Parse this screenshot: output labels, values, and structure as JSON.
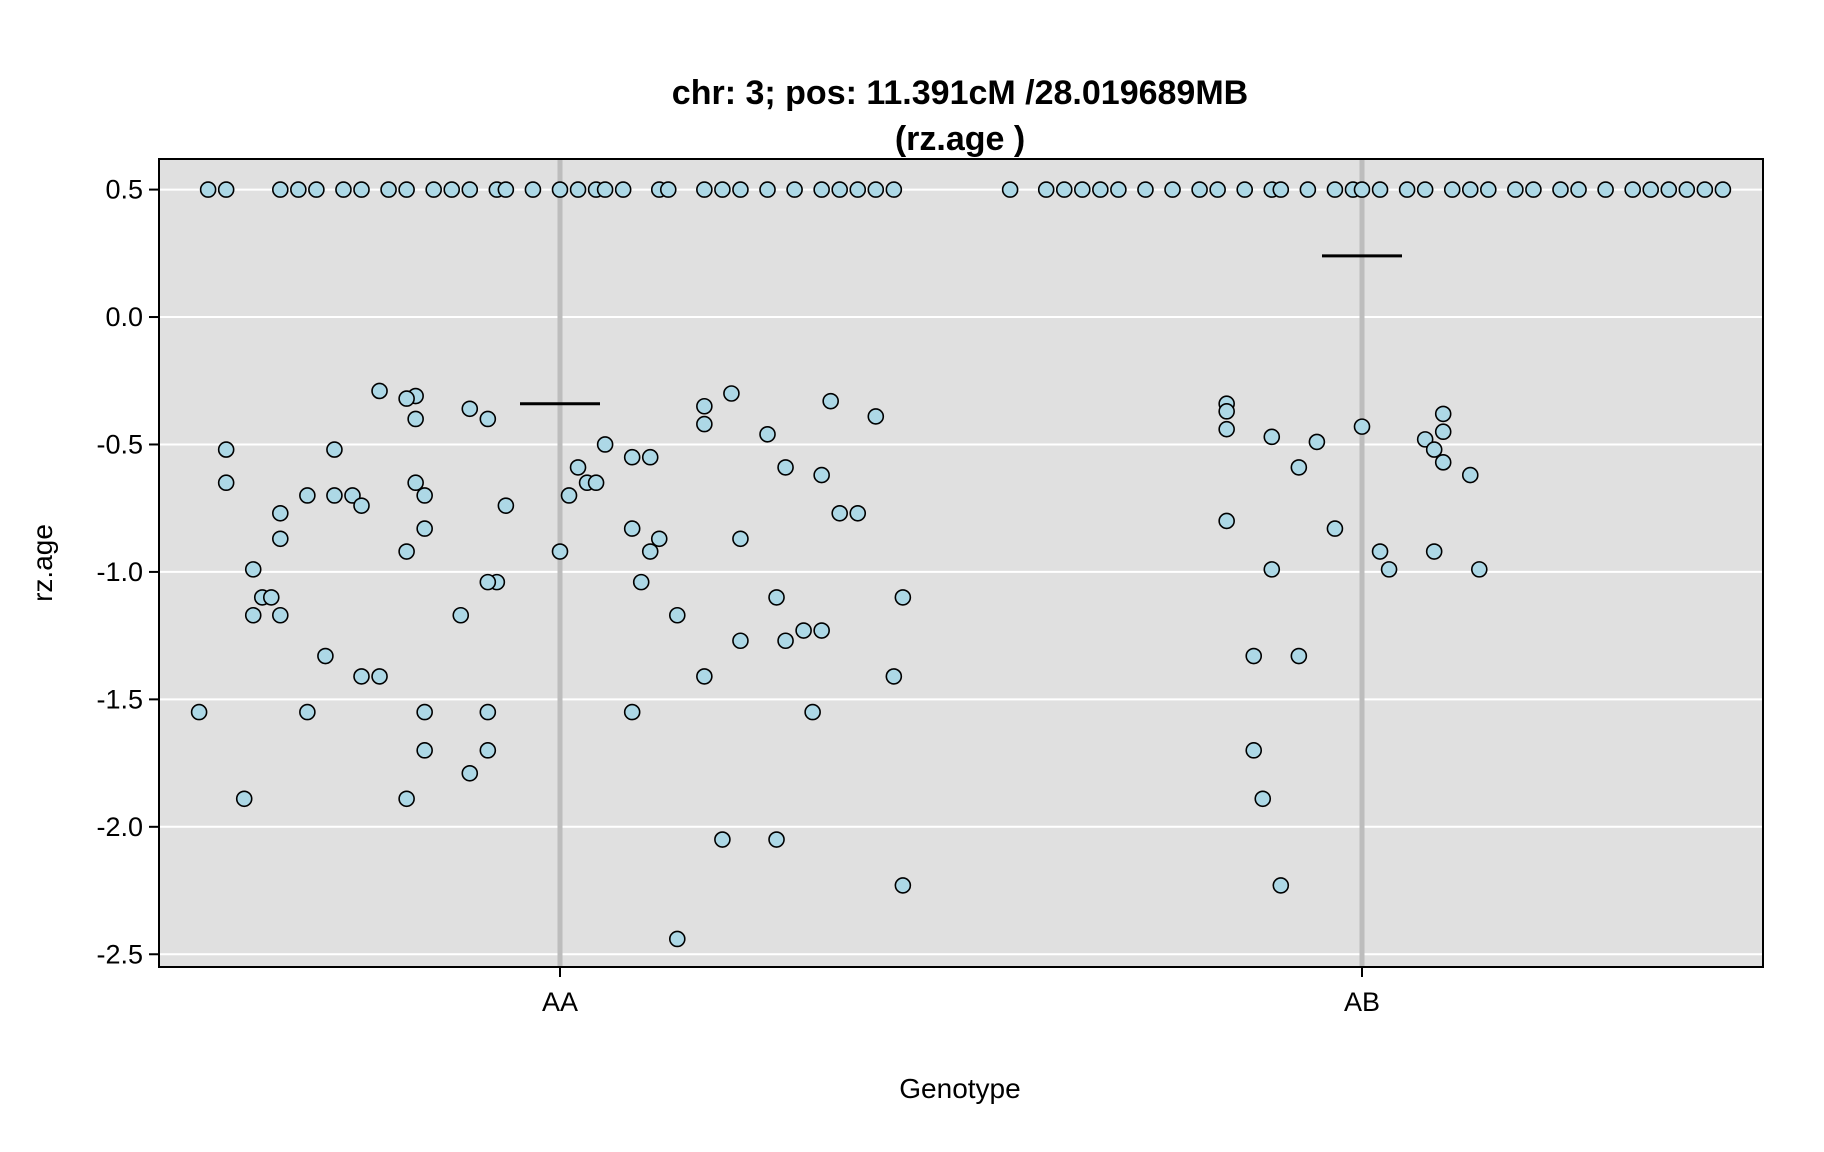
{
  "chart_data": {
    "type": "scatter",
    "title": "chr: 3; pos: 11.391cM /28.019689MB",
    "subtitle": "(rz.age )",
    "xlabel": "Genotype",
    "ylabel": "rz.age",
    "categories": [
      "AA",
      "AB"
    ],
    "ylim": [
      -2.55,
      0.62
    ],
    "yticks": [
      0.5,
      0.0,
      -0.5,
      -1.0,
      -1.5,
      -2.0,
      -2.5
    ],
    "ytick_labels": [
      "0.5",
      "0.0",
      "-0.5",
      "-1.0",
      "-1.5",
      "-2.0",
      "-2.5"
    ],
    "grid": true,
    "colors": {
      "panel": "#e0e0e0",
      "grid": "#ffffff",
      "category_line": "#bdbdbd",
      "point_fill": "#add8e6",
      "point_stroke": "#000000",
      "mean_line": "#000000"
    },
    "series": [
      {
        "category": "AA",
        "mean": -0.34,
        "points": [
          [
            -0.39,
            0.5
          ],
          [
            -0.37,
            0.5
          ],
          [
            -0.31,
            0.5
          ],
          [
            -0.29,
            0.5
          ],
          [
            -0.27,
            0.5
          ],
          [
            -0.24,
            0.5
          ],
          [
            -0.22,
            0.5
          ],
          [
            -0.19,
            0.5
          ],
          [
            -0.17,
            0.5
          ],
          [
            -0.14,
            0.5
          ],
          [
            -0.12,
            0.5
          ],
          [
            -0.1,
            0.5
          ],
          [
            -0.07,
            0.5
          ],
          [
            -0.06,
            0.5
          ],
          [
            -0.03,
            0.5
          ],
          [
            0.0,
            0.5
          ],
          [
            0.02,
            0.5
          ],
          [
            0.04,
            0.5
          ],
          [
            0.05,
            0.5
          ],
          [
            0.07,
            0.5
          ],
          [
            0.11,
            0.5
          ],
          [
            0.12,
            0.5
          ],
          [
            0.16,
            0.5
          ],
          [
            0.18,
            0.5
          ],
          [
            0.2,
            0.5
          ],
          [
            0.23,
            0.5
          ],
          [
            0.26,
            0.5
          ],
          [
            0.29,
            0.5
          ],
          [
            0.31,
            0.5
          ],
          [
            0.33,
            0.5
          ],
          [
            0.35,
            0.5
          ],
          [
            0.37,
            0.5
          ],
          [
            -0.2,
            -0.29
          ],
          [
            -0.16,
            -0.31
          ],
          [
            -0.17,
            -0.32
          ],
          [
            -0.1,
            -0.36
          ],
          [
            -0.08,
            -0.4
          ],
          [
            -0.16,
            -0.4
          ],
          [
            0.19,
            -0.3
          ],
          [
            0.3,
            -0.33
          ],
          [
            0.35,
            -0.39
          ],
          [
            0.16,
            -0.35
          ],
          [
            0.16,
            -0.42
          ],
          [
            0.23,
            -0.46
          ],
          [
            0.05,
            -0.5
          ],
          [
            0.08,
            -0.55
          ],
          [
            0.1,
            -0.55
          ],
          [
            0.02,
            -0.59
          ],
          [
            0.03,
            -0.65
          ],
          [
            0.04,
            -0.65
          ],
          [
            0.01,
            -0.7
          ],
          [
            -0.37,
            -0.52
          ],
          [
            -0.25,
            -0.52
          ],
          [
            -0.37,
            -0.65
          ],
          [
            -0.28,
            -0.7
          ],
          [
            -0.25,
            -0.7
          ],
          [
            -0.23,
            -0.7
          ],
          [
            -0.16,
            -0.65
          ],
          [
            -0.15,
            -0.7
          ],
          [
            -0.22,
            -0.74
          ],
          [
            -0.31,
            -0.77
          ],
          [
            -0.06,
            -0.74
          ],
          [
            0.25,
            -0.59
          ],
          [
            0.29,
            -0.62
          ],
          [
            0.31,
            -0.77
          ],
          [
            0.33,
            -0.77
          ],
          [
            -0.31,
            -0.87
          ],
          [
            -0.17,
            -0.92
          ],
          [
            -0.15,
            -0.83
          ],
          [
            0.0,
            -0.92
          ],
          [
            0.08,
            -0.83
          ],
          [
            0.11,
            -0.87
          ],
          [
            0.1,
            -0.92
          ],
          [
            0.2,
            -0.87
          ],
          [
            -0.34,
            -0.99
          ],
          [
            -0.33,
            -1.1
          ],
          [
            -0.32,
            -1.1
          ],
          [
            -0.34,
            -1.17
          ],
          [
            -0.31,
            -1.17
          ],
          [
            -0.07,
            -1.04
          ],
          [
            -0.08,
            -1.04
          ],
          [
            -0.11,
            -1.17
          ],
          [
            0.09,
            -1.04
          ],
          [
            0.13,
            -1.17
          ],
          [
            0.24,
            -1.1
          ],
          [
            0.38,
            -1.1
          ],
          [
            0.27,
            -1.23
          ],
          [
            0.29,
            -1.23
          ],
          [
            0.2,
            -1.27
          ],
          [
            0.25,
            -1.27
          ],
          [
            -0.26,
            -1.33
          ],
          [
            -0.22,
            -1.41
          ],
          [
            -0.2,
            -1.41
          ],
          [
            0.16,
            -1.41
          ],
          [
            0.37,
            -1.41
          ],
          [
            -0.4,
            -1.55
          ],
          [
            -0.28,
            -1.55
          ],
          [
            -0.15,
            -1.55
          ],
          [
            -0.08,
            -1.55
          ],
          [
            0.08,
            -1.55
          ],
          [
            0.28,
            -1.55
          ],
          [
            -0.15,
            -1.7
          ],
          [
            -0.08,
            -1.7
          ],
          [
            -0.1,
            -1.79
          ],
          [
            -0.35,
            -1.89
          ],
          [
            -0.17,
            -1.89
          ],
          [
            0.18,
            -2.05
          ],
          [
            0.24,
            -2.05
          ],
          [
            0.38,
            -2.23
          ],
          [
            0.13,
            -2.44
          ]
        ]
      },
      {
        "category": "AB",
        "mean": 0.24,
        "points": [
          [
            -0.39,
            0.5
          ],
          [
            -0.35,
            0.5
          ],
          [
            -0.33,
            0.5
          ],
          [
            -0.31,
            0.5
          ],
          [
            -0.29,
            0.5
          ],
          [
            -0.27,
            0.5
          ],
          [
            -0.24,
            0.5
          ],
          [
            -0.21,
            0.5
          ],
          [
            -0.18,
            0.5
          ],
          [
            -0.16,
            0.5
          ],
          [
            -0.13,
            0.5
          ],
          [
            -0.1,
            0.5
          ],
          [
            -0.09,
            0.5
          ],
          [
            -0.06,
            0.5
          ],
          [
            -0.03,
            0.5
          ],
          [
            -0.01,
            0.5
          ],
          [
            0.0,
            0.5
          ],
          [
            0.02,
            0.5
          ],
          [
            0.05,
            0.5
          ],
          [
            0.07,
            0.5
          ],
          [
            0.1,
            0.5
          ],
          [
            0.12,
            0.5
          ],
          [
            0.14,
            0.5
          ],
          [
            0.17,
            0.5
          ],
          [
            0.19,
            0.5
          ],
          [
            0.22,
            0.5
          ],
          [
            0.24,
            0.5
          ],
          [
            0.27,
            0.5
          ],
          [
            0.3,
            0.5
          ],
          [
            0.32,
            0.5
          ],
          [
            0.34,
            0.5
          ],
          [
            0.36,
            0.5
          ],
          [
            0.38,
            0.5
          ],
          [
            0.4,
            0.5
          ],
          [
            -0.15,
            -0.34
          ],
          [
            -0.15,
            -0.37
          ],
          [
            -0.15,
            -0.44
          ],
          [
            -0.1,
            -0.47
          ],
          [
            -0.05,
            -0.49
          ],
          [
            -0.07,
            -0.59
          ],
          [
            0.0,
            -0.43
          ],
          [
            0.09,
            -0.38
          ],
          [
            0.07,
            -0.48
          ],
          [
            0.08,
            -0.52
          ],
          [
            0.09,
            -0.45
          ],
          [
            0.09,
            -0.57
          ],
          [
            0.12,
            -0.62
          ],
          [
            -0.15,
            -0.8
          ],
          [
            -0.03,
            -0.83
          ],
          [
            0.02,
            -0.92
          ],
          [
            0.03,
            -0.99
          ],
          [
            0.08,
            -0.92
          ],
          [
            0.13,
            -0.99
          ],
          [
            -0.1,
            -0.99
          ],
          [
            -0.12,
            -1.33
          ],
          [
            -0.07,
            -1.33
          ],
          [
            -0.12,
            -1.7
          ],
          [
            -0.11,
            -1.89
          ],
          [
            -0.09,
            -2.23
          ]
        ]
      }
    ]
  }
}
